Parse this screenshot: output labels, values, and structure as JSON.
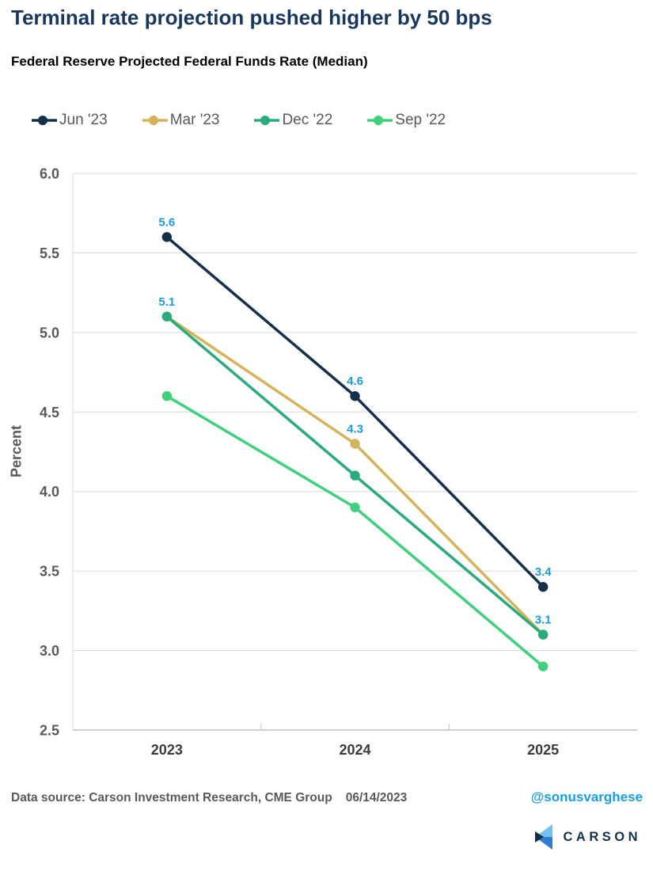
{
  "chart_data": {
    "type": "line",
    "title": "Terminal rate projection pushed higher by 50 bps",
    "subtitle": "Federal Reserve Projected Federal Funds Rate (Median)",
    "categories": [
      "2023",
      "2024",
      "2025"
    ],
    "series": [
      {
        "name": "Jun '23",
        "color": "#16304B",
        "values": [
          5.6,
          4.6,
          3.4
        ],
        "point_labels": [
          "5.6",
          "4.6",
          "3.4"
        ]
      },
      {
        "name": "Mar '23",
        "color": "#D5B35A",
        "values": [
          5.1,
          4.3,
          3.1
        ],
        "point_labels": [
          "",
          "4.3",
          ""
        ]
      },
      {
        "name": "Dec '22",
        "color": "#2AAB7B",
        "values": [
          5.1,
          4.1,
          3.1
        ],
        "point_labels": [
          "5.1",
          "",
          "3.1"
        ]
      },
      {
        "name": "Sep '22",
        "color": "#3FD07E",
        "values": [
          4.6,
          3.9,
          2.9
        ],
        "point_labels": [
          "",
          "",
          ""
        ]
      }
    ],
    "xlabel": "",
    "ylabel": "Percent",
    "ylim": [
      2.5,
      6.0
    ],
    "ytick_labels": [
      "6.0",
      "5.5",
      "5.0",
      "4.5",
      "4.0",
      "3.5",
      "3.0",
      "2.5"
    ],
    "grid": true,
    "legend_position": "top",
    "point_label_color": "#1A9CE5"
  },
  "footer": {
    "source": "Data source: Carson Investment Research, CME Group",
    "date": "06/14/2023",
    "handle": "@sonusvarghese",
    "logo_text": "CARSON"
  },
  "colors": {
    "background": "#FFFFFF",
    "title": "#17375E",
    "subtitle": "#000000",
    "axis_text": "#595959",
    "x_axis_text": "#3B3B3B",
    "legend_text": "#595959",
    "grid": "#D9D9D9",
    "axis_line": "#BFBFBF",
    "footer_text": "#595959",
    "handle": "#1A9CE5",
    "logo_navy": "#16304B",
    "logo_blue": "#2E7FD4",
    "logo_light_blue": "#74C0F0"
  }
}
